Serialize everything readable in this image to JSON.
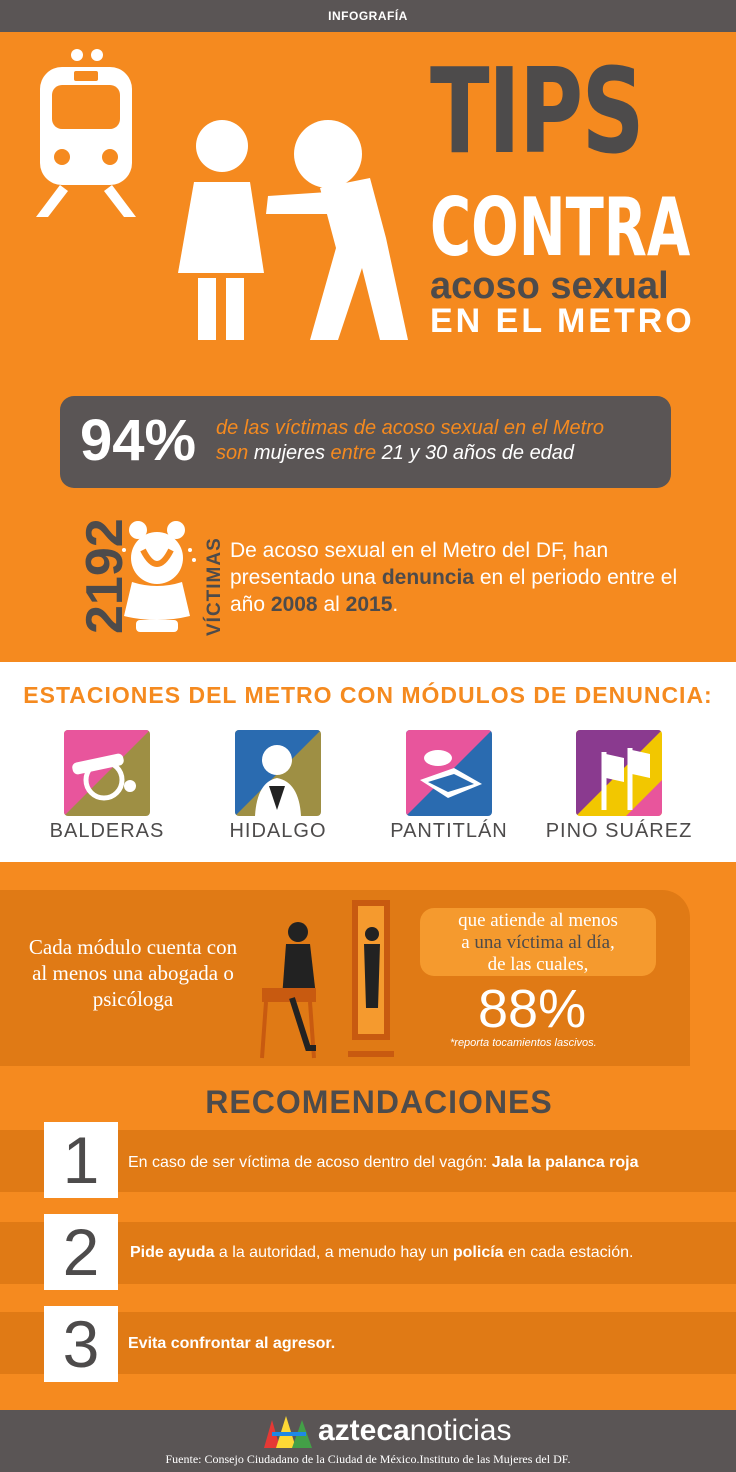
{
  "header": {
    "label": "INFOGRAFÍA"
  },
  "title": {
    "line1": "TIPS",
    "line2": "CONTRA",
    "line3": "acoso sexual",
    "line4": "EN EL METRO"
  },
  "stat": {
    "percent": "94%",
    "seg1": "de las víctimas de acoso sexual en el Metro",
    "seg2": "son",
    "seg3": "mujeres",
    "seg4": "entre",
    "seg5": "21 y 30 años de edad"
  },
  "victims": {
    "number": "2192",
    "label": "VÍCTIMAS",
    "seg1": "De acoso sexual en el Metro del DF, han presentado una",
    "seg2": "denuncia",
    "seg3": "en el periodo entre el año",
    "seg4": "2008",
    "seg5": "al",
    "seg6": "2015",
    "seg7": "."
  },
  "stations": {
    "title": "ESTACIONES DEL METRO CON MÓDULOS DE DENUNCIA:",
    "items": [
      {
        "name": "BALDERAS",
        "icon": "cannon-icon"
      },
      {
        "name": "HIDALGO",
        "icon": "hidalgo-bust-icon"
      },
      {
        "name": "PANTITLÁN",
        "icon": "pantitlan-icon"
      },
      {
        "name": "PINO SUÁREZ",
        "icon": "flags-icon"
      }
    ]
  },
  "module": {
    "text": "Cada módulo cuenta con al menos una abogada o psicóloga",
    "b1": "que atiende al menos",
    "b2": "a",
    "b3": "una víctima al día",
    "b4": ",",
    "b5": "de las cuales,",
    "percent": "88%",
    "note": "*reporta tocamientos lascivos."
  },
  "recommendations": {
    "title": "RECOMENDACIONES",
    "items": [
      {
        "num": "1",
        "pre": "En caso de ser víctima de acoso dentro del vagón: ",
        "b1": "Jala la palanca roja",
        "mid": "",
        "b2": "",
        "post": ""
      },
      {
        "num": "2",
        "pre": "",
        "b1": "Pide ayuda",
        "mid": " a la autoridad, a menudo hay un ",
        "b2": "policía",
        "post": " en cada estación."
      },
      {
        "num": "3",
        "pre": "",
        "b1": "Evita confrontar al agresor.",
        "mid": "",
        "b2": "",
        "post": ""
      }
    ]
  },
  "footer": {
    "logo_bold": "azteca",
    "logo_regular": "noticias",
    "source": "Fuente: Consejo Ciudadano de la Ciudad de México.Instituto de las Mujeres del DF."
  },
  "colors": {
    "orange": "#f58a1f",
    "dark_orange": "#e07a15",
    "gray": "#4d4b4b",
    "white": "#ffffff"
  }
}
